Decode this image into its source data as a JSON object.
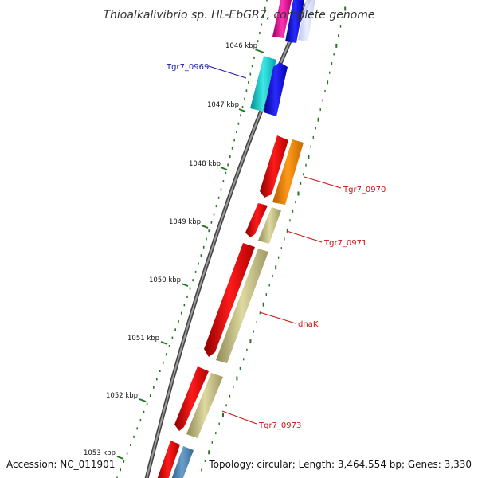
{
  "title": "Thioalkalivibrio sp. HL-EbGR7, complete genome",
  "footer": {
    "accession": "Accession: NC_011901",
    "summary": "Topology: circular; Length: 3,464,554 bp; Genes: 3,330"
  },
  "colors": {
    "backbone": "#777777",
    "tick_mark": "#227722",
    "label_forward": "#1a1aa6",
    "label_reverse": "#cc1111"
  },
  "ticks": [
    {
      "label": "1046 kbp"
    },
    {
      "label": "1047 kbp"
    },
    {
      "label": "1048 kbp"
    },
    {
      "label": "1049 kbp"
    },
    {
      "label": "1050 kbp"
    },
    {
      "label": "1051 kbp"
    },
    {
      "label": "1052 kbp"
    },
    {
      "label": "1053 kbp"
    }
  ],
  "gene_labels": [
    {
      "text": "Tgr7_0969",
      "color": "#1a1aa6"
    },
    {
      "text": "Tgr7_0970",
      "color": "#cc1111"
    },
    {
      "text": "Tgr7_0971",
      "color": "#cc1111"
    },
    {
      "text": "dnaK",
      "color": "#cc1111"
    },
    {
      "text": "Tgr7_0973",
      "color": "#cc1111"
    }
  ]
}
